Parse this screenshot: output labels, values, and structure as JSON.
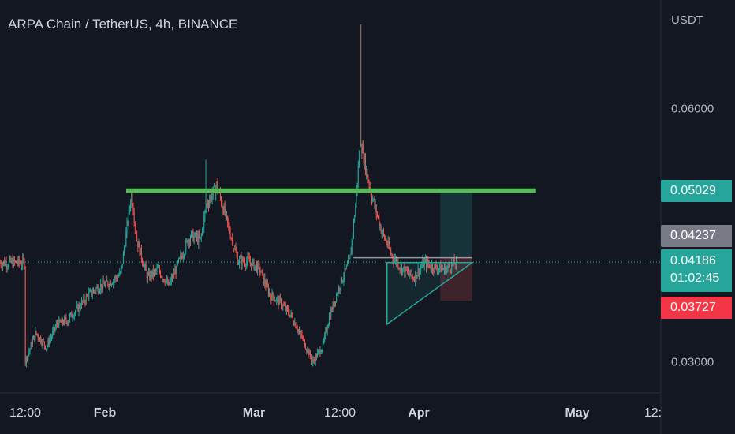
{
  "header": {
    "title": "ARPA Chain / TetherUS, 4h, BINANCE"
  },
  "price_axis": {
    "currency": "USDT",
    "tick_labels": [
      "0.06000",
      "0.03000"
    ],
    "tick_values": [
      0.06,
      0.03
    ]
  },
  "time_axis": {
    "tick_labels": [
      "12:00",
      "Feb",
      "Mar",
      "12:00",
      "Apr",
      "May",
      "12:"
    ]
  },
  "price_tags": {
    "take_profit": "0.05029",
    "level": "0.04237",
    "current_price": "0.04186",
    "countdown": "01:02:45",
    "stop_loss": "0.03727"
  },
  "colors": {
    "background": "#131722",
    "up": "#26a69a",
    "down": "#ef5350",
    "resistance_line": "#5cb85c",
    "triangle": "#26a69a",
    "target_zone": "#26a69a",
    "stop_zone": "#ef5350"
  },
  "chart_data": {
    "type": "candlestick",
    "title": "ARPA Chain / TetherUS, 4h, BINANCE",
    "symbol": "ARPA/USDT",
    "interval": "4h",
    "exchange": "BINANCE",
    "ylabel": "USDT",
    "ylim": [
      0.0265,
      0.0725
    ],
    "grid": false,
    "price_path": [
      [
        "2022-01-17",
        0.03
      ],
      [
        "2022-01-19",
        0.0335
      ],
      [
        "2022-01-21",
        0.0318
      ],
      [
        "2022-01-23",
        0.0345
      ],
      [
        "2022-01-25",
        0.035
      ],
      [
        "2022-01-27",
        0.0365
      ],
      [
        "2022-01-29",
        0.038
      ],
      [
        "2022-01-31",
        0.039
      ],
      [
        "2022-02-02",
        0.0395
      ],
      [
        "2022-02-04",
        0.0405
      ],
      [
        "2022-02-06",
        0.05
      ],
      [
        "2022-02-07",
        0.0445
      ],
      [
        "2022-02-09",
        0.04
      ],
      [
        "2022-02-11",
        0.041
      ],
      [
        "2022-02-13",
        0.039
      ],
      [
        "2022-02-15",
        0.042
      ],
      [
        "2022-02-17",
        0.045
      ],
      [
        "2022-02-19",
        0.0445
      ],
      [
        "2022-02-20",
        0.0485
      ],
      [
        "2022-02-22",
        0.051
      ],
      [
        "2022-02-24",
        0.0465
      ],
      [
        "2022-02-26",
        0.042
      ],
      [
        "2022-02-28",
        0.042
      ],
      [
        "2022-03-02",
        0.041
      ],
      [
        "2022-03-04",
        0.038
      ],
      [
        "2022-03-06",
        0.037
      ],
      [
        "2022-03-08",
        0.0355
      ],
      [
        "2022-03-10",
        0.033
      ],
      [
        "2022-03-12",
        0.03
      ],
      [
        "2022-03-14",
        0.032
      ],
      [
        "2022-03-15",
        0.035
      ],
      [
        "2022-03-17",
        0.039
      ],
      [
        "2022-03-19",
        0.042
      ],
      [
        "2022-03-20",
        0.048
      ],
      [
        "2022-03-21",
        0.0565
      ],
      [
        "2022-03-22",
        0.053
      ],
      [
        "2022-03-23",
        0.05
      ],
      [
        "2022-03-25",
        0.0455
      ],
      [
        "2022-03-27",
        0.0425
      ],
      [
        "2022-03-29",
        0.041
      ],
      [
        "2022-03-31",
        0.04
      ],
      [
        "2022-04-02",
        0.0418
      ],
      [
        "2022-04-04",
        0.0412
      ],
      [
        "2022-04-06",
        0.041
      ],
      [
        "2022-04-08",
        0.0418
      ]
    ],
    "wick_extremes": [
      [
        "2022-02-20",
        0.054
      ],
      [
        "2022-03-21",
        0.07
      ],
      [
        "2022-03-12",
        0.0295
      ]
    ],
    "annotations": {
      "horizontal_resistance": {
        "price": 0.0503,
        "from": "2022-02-05",
        "to": "2022-04-23"
      },
      "ascending_triangle": {
        "points": [
          [
            "2022-03-26",
            0.0418
          ],
          [
            "2022-04-11",
            0.0418
          ],
          [
            "2022-03-26",
            0.0345
          ]
        ]
      },
      "long_position": {
        "from": "2022-04-05",
        "to": "2022-04-11",
        "entry": 0.04237,
        "target": 0.05029,
        "stop": 0.03727
      },
      "current_price_line": 0.04186
    }
  }
}
